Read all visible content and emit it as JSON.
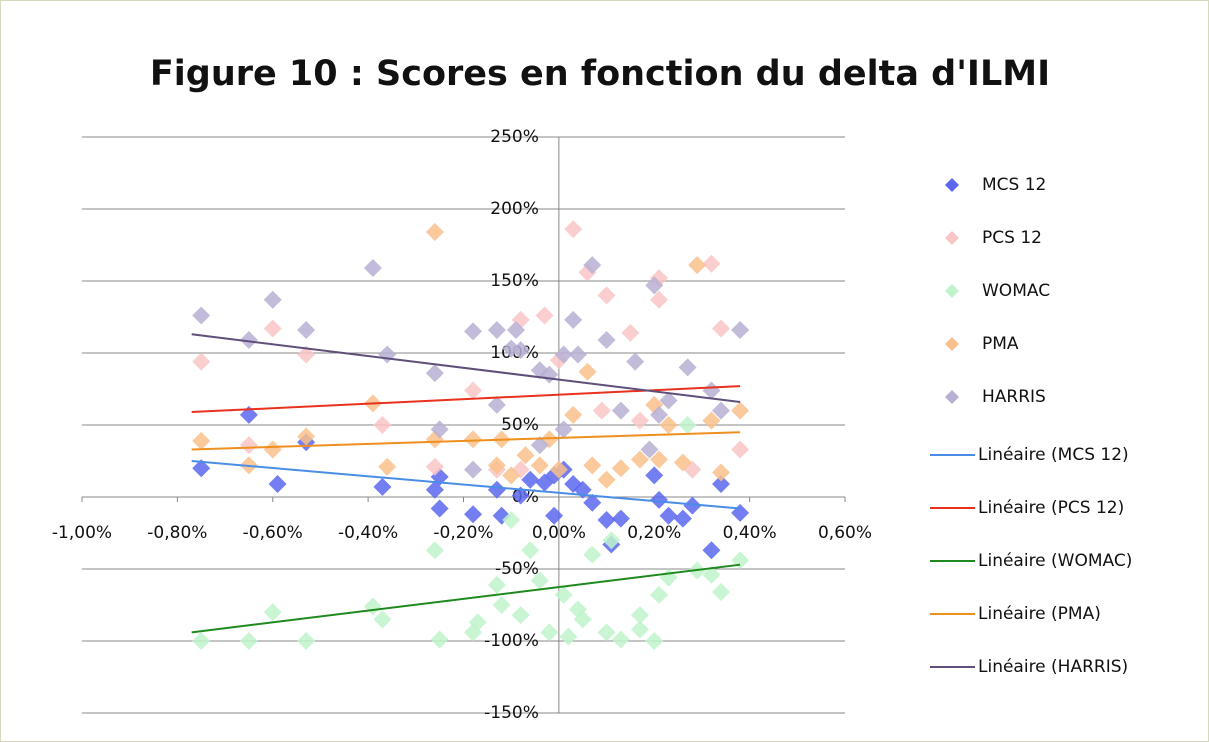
{
  "chart_data": {
    "type": "scatter",
    "title": "Figure 10 : Scores en fonction du delta d'ILMI",
    "xlim": [
      -1,
      0.6
    ],
    "xticks": [
      {
        "value": -1,
        "label": "-1,00%"
      },
      {
        "value": -0.8,
        "label": "-0,80%"
      },
      {
        "value": -0.6,
        "label": "-0,60%"
      },
      {
        "value": -0.4,
        "label": "-0,40%"
      },
      {
        "value": -0.2,
        "label": "-0,20%"
      },
      {
        "value": 0,
        "label": "0,00%"
      },
      {
        "value": 0.2,
        "label": "0,20%"
      },
      {
        "value": 0.4,
        "label": "0,40%"
      },
      {
        "value": 0.6,
        "label": "0,60%"
      }
    ],
    "ylim": [
      -150,
      250
    ],
    "yticks": [
      {
        "value": -150,
        "label": "-150%"
      },
      {
        "value": -100,
        "label": "-100%"
      },
      {
        "value": -50,
        "label": "-50%"
      },
      {
        "value": 0,
        "label": "0%"
      },
      {
        "value": 50,
        "label": "50%"
      },
      {
        "value": 100,
        "label": "100%"
      },
      {
        "value": 150,
        "label": "150%"
      },
      {
        "value": 200,
        "label": "200%"
      },
      {
        "value": 250,
        "label": "250%"
      }
    ],
    "grid": true,
    "legend": "right",
    "series": [
      {
        "name": "MCS 12",
        "color": "#5b67ee",
        "x": [
          -0.75,
          -0.65,
          -0.59,
          -0.53,
          -0.37,
          -0.26,
          -0.25,
          -0.25,
          -0.18,
          -0.13,
          -0.12,
          -0.08,
          -0.06,
          -0.03,
          -0.01,
          0.01,
          0.03,
          0.05,
          0.07,
          0.1,
          0.11,
          0.13,
          0.2,
          0.21,
          0.23,
          0.26,
          0.28,
          0.32,
          0.34,
          0.38,
          -0.01
        ],
        "values": [
          20,
          57,
          9,
          38,
          7,
          5,
          -8,
          14,
          -12,
          5,
          -13,
          1,
          12,
          10,
          -13,
          19,
          9,
          5,
          -4,
          -16,
          -33,
          -15,
          15,
          -2,
          -13,
          -15,
          -6,
          -37,
          9,
          -11,
          15
        ]
      },
      {
        "name": "PCS 12",
        "color": "#f9c6c6",
        "x": [
          -0.75,
          -0.65,
          -0.6,
          -0.53,
          -0.37,
          -0.26,
          -0.18,
          -0.13,
          -0.08,
          -0.03,
          0.03,
          0.06,
          0.1,
          0.15,
          0.21,
          0.21,
          0.32,
          0.34,
          0.38,
          0.09,
          0.17,
          0.28,
          0,
          -0.08
        ],
        "values": [
          94,
          36,
          117,
          99,
          50,
          21,
          74,
          19,
          123,
          126,
          186,
          156,
          140,
          114,
          152,
          137,
          162,
          117,
          33,
          60,
          53,
          19,
          95,
          19
        ]
      },
      {
        "name": "WOMAC",
        "color": "#bff3cb",
        "x": [
          -0.75,
          -0.65,
          -0.6,
          -0.53,
          -0.39,
          -0.37,
          -0.26,
          -0.25,
          -0.18,
          -0.17,
          -0.13,
          -0.12,
          -0.1,
          -0.08,
          -0.06,
          -0.04,
          -0.02,
          0.01,
          0.02,
          0.04,
          0.05,
          0.07,
          0.1,
          0.11,
          0.13,
          0.17,
          0.17,
          0.2,
          0.21,
          0.23,
          0.27,
          0.29,
          0.32,
          0.34,
          0.38
        ],
        "values": [
          -100,
          -100,
          -80,
          -100,
          -76,
          -85,
          -37,
          -99,
          -94,
          -87,
          -61,
          -75,
          -16,
          -82,
          -37,
          -58,
          -94,
          -68,
          -97,
          -78,
          -85,
          -40,
          -94,
          -30,
          -99,
          -82,
          -92,
          -100,
          -68,
          -56,
          50,
          -51,
          -54,
          -66,
          -44
        ]
      },
      {
        "name": "PMA",
        "color": "#f9c08b",
        "x": [
          -0.75,
          -0.65,
          -0.6,
          -0.53,
          -0.39,
          -0.36,
          -0.26,
          -0.26,
          -0.18,
          -0.13,
          -0.12,
          -0.1,
          -0.07,
          -0.04,
          -0.02,
          0,
          0.03,
          0.06,
          0.07,
          0.1,
          0.13,
          0.17,
          0.2,
          0.21,
          0.23,
          0.26,
          0.29,
          0.32,
          0.34,
          0.38
        ],
        "values": [
          39,
          22,
          33,
          42,
          65,
          21,
          184,
          40,
          40,
          22,
          40,
          15,
          29,
          22,
          40,
          19,
          57,
          87,
          22,
          12,
          20,
          26,
          64,
          26,
          50,
          24,
          161,
          53,
          17,
          60
        ]
      },
      {
        "name": "HARRIS",
        "color": "#b9afd3",
        "x": [
          -0.75,
          -0.65,
          -0.6,
          -0.53,
          -0.39,
          -0.36,
          -0.26,
          -0.25,
          -0.18,
          -0.18,
          -0.13,
          -0.13,
          -0.09,
          -0.1,
          -0.08,
          -0.04,
          -0.02,
          0.01,
          0.03,
          0.04,
          0.07,
          0.1,
          0.13,
          0.16,
          0.2,
          0.21,
          0.23,
          0.27,
          0.32,
          0.34,
          0.38,
          0.19,
          -0.04,
          0.01
        ],
        "values": [
          126,
          109,
          137,
          116,
          159,
          99,
          86,
          47,
          115,
          19,
          64,
          116,
          116,
          103,
          102,
          88,
          85,
          99,
          123,
          99,
          161,
          109,
          60,
          94,
          147,
          57,
          67,
          90,
          74,
          60,
          116,
          33,
          36,
          47
        ]
      }
    ],
    "trendlines": [
      {
        "name": "Linéaire (MCS 12)",
        "color": "#4a8de6",
        "x": [
          -0.77,
          0.38
        ],
        "values": [
          25,
          -8
        ]
      },
      {
        "name": "Linéaire (PCS 12)",
        "color": "#e8321e",
        "x": [
          -0.77,
          0.38
        ],
        "values": [
          59,
          77
        ]
      },
      {
        "name": "Linéaire (WOMAC)",
        "color": "#1e8a1e",
        "x": [
          -0.77,
          0.38
        ],
        "values": [
          -94,
          -47
        ]
      },
      {
        "name": "Linéaire (PMA)",
        "color": "#ee8f1e",
        "x": [
          -0.77,
          0.38
        ],
        "values": [
          33,
          45
        ]
      },
      {
        "name": "Linéaire (HARRIS)",
        "color": "#5f4f7a",
        "x": [
          -0.77,
          0.38
        ],
        "values": [
          113,
          66
        ]
      }
    ]
  }
}
